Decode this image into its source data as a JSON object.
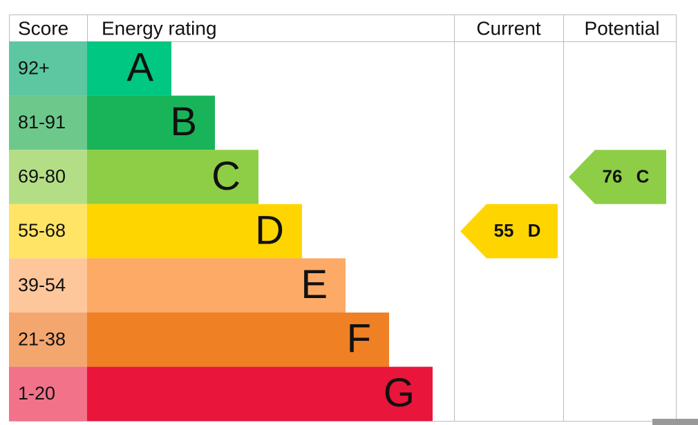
{
  "header": {
    "score": "Score",
    "rating": "Energy rating",
    "current": "Current",
    "potential": "Potential"
  },
  "bands": [
    {
      "score": "92+",
      "letter": "A",
      "color": "#00c781",
      "score_color": "#5dc7a2"
    },
    {
      "score": "81-91",
      "letter": "B",
      "color": "#19b459",
      "score_color": "#6cc98b"
    },
    {
      "score": "69-80",
      "letter": "C",
      "color": "#8dce46",
      "score_color": "#b3de86"
    },
    {
      "score": "55-68",
      "letter": "D",
      "color": "#ffd500",
      "score_color": "#ffe466"
    },
    {
      "score": "39-54",
      "letter": "E",
      "color": "#fcaa65",
      "score_color": "#fdc79b"
    },
    {
      "score": "21-38",
      "letter": "F",
      "color": "#ef8023",
      "score_color": "#f4a66f"
    },
    {
      "score": "1-20",
      "letter": "G",
      "color": "#e9153b",
      "score_color": "#f2728a"
    }
  ],
  "current": {
    "value": 55,
    "letter": "D"
  },
  "potential": {
    "value": 76,
    "letter": "C"
  }
}
